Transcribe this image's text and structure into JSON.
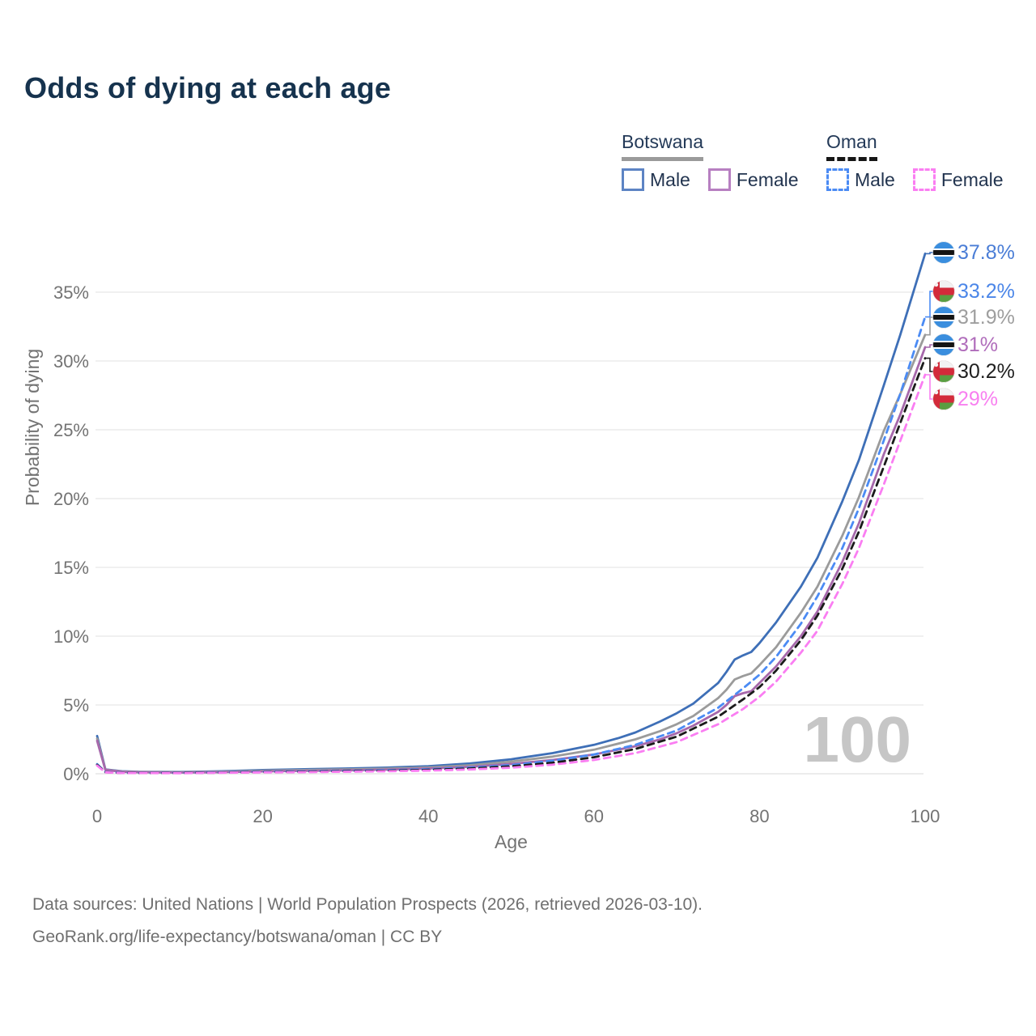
{
  "page": {
    "title": "Odds of dying at each age",
    "footer_line1": "Data sources: United Nations | World Population Prospects (2026, retrieved 2026-03-10).",
    "footer_line2": "GeoRank.org/life-expectancy/botswana/oman | CC BY"
  },
  "legend": {
    "groups": [
      {
        "name": "Botswana",
        "underline": "solid",
        "underline_color": "#9a9a9a",
        "items": [
          {
            "label": "Male",
            "color": "#5d84c4",
            "dashed": false
          },
          {
            "label": "Female",
            "color": "#b77fc1",
            "dashed": false
          }
        ]
      },
      {
        "name": "Oman",
        "underline": "dashed",
        "underline_color": "#161616",
        "items": [
          {
            "label": "Male",
            "color": "#4b8bf4",
            "dashed": true
          },
          {
            "label": "Female",
            "color": "#fa7ef2",
            "dashed": true
          }
        ]
      }
    ]
  },
  "chart_data": {
    "type": "line",
    "title": "Odds of dying at each age",
    "xlabel": "Age",
    "ylabel": "Probability of dying",
    "watermark": "100",
    "xlim": [
      0,
      100
    ],
    "ylim_pct": [
      0,
      38
    ],
    "xticks": [
      0,
      20,
      40,
      60,
      80,
      100
    ],
    "yticks_pct": [
      0,
      5,
      10,
      15,
      20,
      25,
      30,
      35
    ],
    "ytick_format": "%",
    "grid": "horizontal",
    "legend_position": "top-right",
    "colors": {
      "grid": "#e8e8e8",
      "baseline": "#e0e0e0",
      "axis_text": "#737373",
      "watermark": "#c6c6c6",
      "title": "#16334e",
      "footer": "#6f6f6f",
      "flag_botswana_blue": "#3a8ede",
      "flag_oman_red": "#d32b3a",
      "flag_oman_green": "#5a9e41"
    },
    "series": [
      {
        "name": "Botswana Male",
        "country": "Botswana",
        "sex": "male",
        "flag": "botswana",
        "color": "#3e6fb7",
        "dashed": false,
        "end_label": "37.8%",
        "end_value_pct": 37.8,
        "label_color": "#4a7dd6",
        "label_slot_y": 312,
        "points": [
          [
            0,
            2.75
          ],
          [
            1,
            0.32
          ],
          [
            3,
            0.18
          ],
          [
            5,
            0.15
          ],
          [
            10,
            0.13
          ],
          [
            15,
            0.18
          ],
          [
            20,
            0.27
          ],
          [
            25,
            0.33
          ],
          [
            30,
            0.38
          ],
          [
            35,
            0.45
          ],
          [
            40,
            0.55
          ],
          [
            45,
            0.75
          ],
          [
            50,
            1.05
          ],
          [
            55,
            1.5
          ],
          [
            60,
            2.1
          ],
          [
            63,
            2.6
          ],
          [
            65,
            3.0
          ],
          [
            68,
            3.8
          ],
          [
            70,
            4.4
          ],
          [
            72,
            5.1
          ],
          [
            75,
            6.6
          ],
          [
            76,
            7.4
          ],
          [
            77,
            8.3
          ],
          [
            78,
            8.6
          ],
          [
            79,
            8.85
          ],
          [
            80,
            9.5
          ],
          [
            82,
            11.0
          ],
          [
            85,
            13.6
          ],
          [
            87,
            15.7
          ],
          [
            90,
            19.8
          ],
          [
            92,
            22.8
          ],
          [
            95,
            28.2
          ],
          [
            97,
            31.9
          ],
          [
            100,
            37.8
          ]
        ]
      },
      {
        "name": "Botswana Both sexes",
        "country": "Botswana",
        "sex": "both",
        "flag": "botswana",
        "color": "#9b9b9b",
        "dashed": false,
        "end_label": "31.9%",
        "end_value_pct": 31.9,
        "label_color": "#9e9e9e",
        "label_slot_y": 392,
        "points": [
          [
            0,
            2.55
          ],
          [
            1,
            0.3
          ],
          [
            3,
            0.16
          ],
          [
            5,
            0.13
          ],
          [
            10,
            0.11
          ],
          [
            15,
            0.15
          ],
          [
            20,
            0.22
          ],
          [
            25,
            0.27
          ],
          [
            30,
            0.31
          ],
          [
            35,
            0.37
          ],
          [
            40,
            0.46
          ],
          [
            45,
            0.62
          ],
          [
            50,
            0.88
          ],
          [
            55,
            1.25
          ],
          [
            60,
            1.75
          ],
          [
            65,
            2.5
          ],
          [
            68,
            3.1
          ],
          [
            70,
            3.6
          ],
          [
            72,
            4.2
          ],
          [
            75,
            5.5
          ],
          [
            76,
            6.1
          ],
          [
            77,
            6.85
          ],
          [
            78,
            7.1
          ],
          [
            79,
            7.3
          ],
          [
            80,
            7.9
          ],
          [
            82,
            9.2
          ],
          [
            85,
            11.7
          ],
          [
            87,
            13.6
          ],
          [
            90,
            17.3
          ],
          [
            92,
            20.1
          ],
          [
            95,
            24.9
          ],
          [
            97,
            27.6
          ],
          [
            100,
            31.9
          ]
        ]
      },
      {
        "name": "Botswana Female",
        "country": "Botswana",
        "sex": "female",
        "flag": "botswana",
        "color": "#a668ab",
        "dashed": false,
        "end_label": "31%",
        "end_value_pct": 31.0,
        "label_color": "#b06dbb",
        "label_slot_y": 426,
        "points": [
          [
            0,
            2.4
          ],
          [
            1,
            0.28
          ],
          [
            3,
            0.14
          ],
          [
            5,
            0.11
          ],
          [
            10,
            0.09
          ],
          [
            15,
            0.12
          ],
          [
            20,
            0.17
          ],
          [
            25,
            0.21
          ],
          [
            30,
            0.25
          ],
          [
            35,
            0.3
          ],
          [
            40,
            0.38
          ],
          [
            45,
            0.5
          ],
          [
            50,
            0.72
          ],
          [
            55,
            1.0
          ],
          [
            60,
            1.4
          ],
          [
            65,
            2.0
          ],
          [
            68,
            2.5
          ],
          [
            70,
            2.95
          ],
          [
            72,
            3.5
          ],
          [
            75,
            4.5
          ],
          [
            76,
            5.0
          ],
          [
            77,
            5.65
          ],
          [
            78,
            5.85
          ],
          [
            79,
            6.0
          ],
          [
            80,
            6.6
          ],
          [
            82,
            7.8
          ],
          [
            85,
            10.0
          ],
          [
            87,
            11.8
          ],
          [
            90,
            15.4
          ],
          [
            92,
            18.2
          ],
          [
            95,
            23.2
          ],
          [
            97,
            26.1
          ],
          [
            100,
            31.0
          ]
        ]
      },
      {
        "name": "Oman Male",
        "country": "Oman",
        "sex": "male",
        "flag": "oman",
        "color": "#4b8bf4",
        "dashed": true,
        "end_label": "33.2%",
        "end_value_pct": 33.2,
        "label_color": "#4b86e8",
        "label_slot_y": 360,
        "points": [
          [
            0,
            0.7
          ],
          [
            1,
            0.12
          ],
          [
            3,
            0.07
          ],
          [
            5,
            0.06
          ],
          [
            10,
            0.06
          ],
          [
            15,
            0.1
          ],
          [
            20,
            0.15
          ],
          [
            25,
            0.18
          ],
          [
            30,
            0.21
          ],
          [
            35,
            0.26
          ],
          [
            40,
            0.33
          ],
          [
            45,
            0.45
          ],
          [
            50,
            0.63
          ],
          [
            55,
            0.95
          ],
          [
            60,
            1.4
          ],
          [
            65,
            2.1
          ],
          [
            70,
            3.15
          ],
          [
            75,
            4.8
          ],
          [
            78,
            6.2
          ],
          [
            80,
            7.2
          ],
          [
            82,
            8.5
          ],
          [
            85,
            10.9
          ],
          [
            87,
            12.9
          ],
          [
            90,
            16.4
          ],
          [
            92,
            19.3
          ],
          [
            95,
            24.2
          ],
          [
            97,
            27.6
          ],
          [
            100,
            33.2
          ]
        ]
      },
      {
        "name": "Oman Both sexes",
        "country": "Oman",
        "sex": "both",
        "flag": "oman",
        "color": "#1b1b1b",
        "dashed": true,
        "end_label": "30.2%",
        "end_value_pct": 30.2,
        "label_color": "#1f1f1f",
        "label_slot_y": 459,
        "points": [
          [
            0,
            0.65
          ],
          [
            1,
            0.11
          ],
          [
            3,
            0.06
          ],
          [
            5,
            0.05
          ],
          [
            10,
            0.05
          ],
          [
            15,
            0.08
          ],
          [
            20,
            0.12
          ],
          [
            25,
            0.15
          ],
          [
            30,
            0.18
          ],
          [
            35,
            0.22
          ],
          [
            40,
            0.28
          ],
          [
            45,
            0.38
          ],
          [
            50,
            0.54
          ],
          [
            55,
            0.8
          ],
          [
            60,
            1.2
          ],
          [
            65,
            1.8
          ],
          [
            70,
            2.7
          ],
          [
            75,
            4.15
          ],
          [
            78,
            5.4
          ],
          [
            80,
            6.3
          ],
          [
            82,
            7.5
          ],
          [
            85,
            9.7
          ],
          [
            87,
            11.5
          ],
          [
            90,
            14.9
          ],
          [
            92,
            17.6
          ],
          [
            95,
            22.3
          ],
          [
            97,
            25.5
          ],
          [
            100,
            30.2
          ]
        ]
      },
      {
        "name": "Oman Female",
        "country": "Oman",
        "sex": "female",
        "flag": "oman",
        "color": "#fa7ef2",
        "dashed": true,
        "end_label": "29%",
        "end_value_pct": 29.0,
        "label_color": "#f87ff0",
        "label_slot_y": 493,
        "points": [
          [
            0,
            0.6
          ],
          [
            1,
            0.1
          ],
          [
            3,
            0.05
          ],
          [
            5,
            0.05
          ],
          [
            10,
            0.04
          ],
          [
            15,
            0.07
          ],
          [
            20,
            0.1
          ],
          [
            25,
            0.12
          ],
          [
            30,
            0.15
          ],
          [
            35,
            0.18
          ],
          [
            40,
            0.23
          ],
          [
            45,
            0.31
          ],
          [
            50,
            0.44
          ],
          [
            55,
            0.66
          ],
          [
            60,
            1.0
          ],
          [
            65,
            1.5
          ],
          [
            70,
            2.3
          ],
          [
            75,
            3.6
          ],
          [
            78,
            4.7
          ],
          [
            80,
            5.6
          ],
          [
            82,
            6.7
          ],
          [
            85,
            8.8
          ],
          [
            87,
            10.4
          ],
          [
            90,
            13.8
          ],
          [
            92,
            16.4
          ],
          [
            95,
            21.0
          ],
          [
            97,
            24.2
          ],
          [
            100,
            29.0
          ]
        ]
      }
    ]
  }
}
